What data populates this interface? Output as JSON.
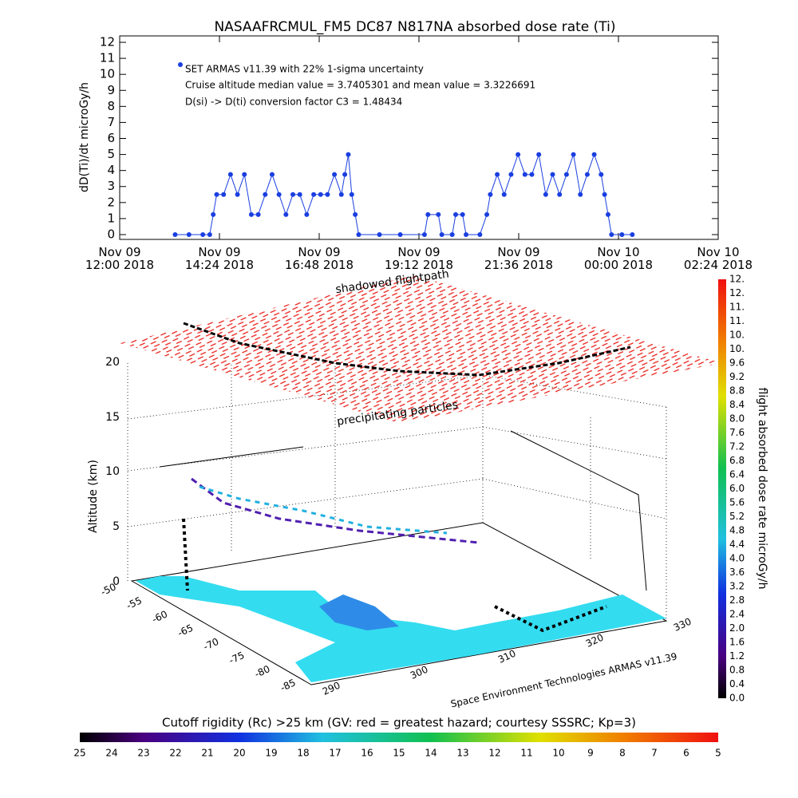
{
  "chart_data": {
    "type": "line",
    "title": "NASAAFRCMUL_FM5 DC87 N817NA absorbed dose rate (Ti)",
    "ylabel": "dD(Ti)/dt microGy/h",
    "annotations": [
      "SET ARMAS v11.39 with 22% 1-sigma uncertainty",
      "Cruise altitude median value = 3.7405301 and mean value = 3.3226691",
      "D(si) -> D(ti) conversion factor C3 = 1.48434"
    ],
    "color": "#1a3fe0",
    "xlim": [
      "2018-11-09T12:00",
      "2018-11-10T02:24"
    ],
    "xticks": [
      {
        "value": "2018-11-09T12:00",
        "label": "Nov 09 12:00 2018"
      },
      {
        "value": "2018-11-09T14:24",
        "label": "Nov 09 14:24 2018"
      },
      {
        "value": "2018-11-09T16:48",
        "label": "Nov 09 16:48 2018"
      },
      {
        "value": "2018-11-09T19:12",
        "label": "Nov 09 19:12 2018"
      },
      {
        "value": "2018-11-09T21:36",
        "label": "Nov 09 21:36 2018"
      },
      {
        "value": "2018-11-10T00:00",
        "label": "Nov 10 00:00 2018"
      },
      {
        "value": "2018-11-10T02:24",
        "label": "Nov 10 02:24 2018"
      }
    ],
    "ylim": [
      -0.3,
      12.4
    ],
    "yticks": [
      0,
      1,
      2,
      3,
      4,
      5,
      6,
      7,
      8,
      9,
      10,
      11,
      12
    ],
    "x": [
      "2018-11-09T13:20",
      "2018-11-09T13:40",
      "2018-11-09T14:00",
      "2018-11-09T14:10",
      "2018-11-09T14:15",
      "2018-11-09T14:20",
      "2018-11-09T14:30",
      "2018-11-09T14:40",
      "2018-11-09T14:50",
      "2018-11-09T15:00",
      "2018-11-09T15:10",
      "2018-11-09T15:20",
      "2018-11-09T15:30",
      "2018-11-09T15:40",
      "2018-11-09T15:50",
      "2018-11-09T16:00",
      "2018-11-09T16:10",
      "2018-11-09T16:20",
      "2018-11-09T16:30",
      "2018-11-09T16:40",
      "2018-11-09T16:50",
      "2018-11-09T17:00",
      "2018-11-09T17:10",
      "2018-11-09T17:20",
      "2018-11-09T17:25",
      "2018-11-09T17:30",
      "2018-11-09T17:35",
      "2018-11-09T17:40",
      "2018-11-09T17:45",
      "2018-11-09T18:15",
      "2018-11-09T18:45",
      "2018-11-09T19:20",
      "2018-11-09T19:25",
      "2018-11-09T19:40",
      "2018-11-09T19:45",
      "2018-11-09T20:00",
      "2018-11-09T20:05",
      "2018-11-09T20:15",
      "2018-11-09T20:20",
      "2018-11-09T20:40",
      "2018-11-09T20:50",
      "2018-11-09T20:55",
      "2018-11-09T21:05",
      "2018-11-09T21:15",
      "2018-11-09T21:25",
      "2018-11-09T21:35",
      "2018-11-09T21:45",
      "2018-11-09T21:55",
      "2018-11-09T22:05",
      "2018-11-09T22:15",
      "2018-11-09T22:25",
      "2018-11-09T22:35",
      "2018-11-09T22:45",
      "2018-11-09T22:55",
      "2018-11-09T23:05",
      "2018-11-09T23:15",
      "2018-11-09T23:25",
      "2018-11-09T23:35",
      "2018-11-09T23:40",
      "2018-11-09T23:45",
      "2018-11-09T23:50",
      "2018-11-10T00:05",
      "2018-11-10T00:20"
    ],
    "values": [
      0,
      0,
      0,
      0,
      1.25,
      2.5,
      2.5,
      3.75,
      2.5,
      3.75,
      1.25,
      1.25,
      2.5,
      3.75,
      2.5,
      1.25,
      2.5,
      2.5,
      1.25,
      2.5,
      2.5,
      2.5,
      3.75,
      2.5,
      3.75,
      5,
      2.5,
      1.25,
      0,
      0,
      0,
      0,
      1.25,
      1.25,
      0,
      0,
      1.25,
      1.25,
      0,
      0,
      1.25,
      2.5,
      3.75,
      2.5,
      3.75,
      5,
      3.75,
      3.75,
      5,
      2.5,
      3.75,
      2.5,
      3.75,
      5,
      2.5,
      3.75,
      5,
      3.75,
      2.5,
      1.25,
      0,
      0,
      0
    ]
  },
  "plot3d": {
    "labels": [
      "shadowed flightpath",
      "precipitating particles"
    ],
    "zlabel": "Altitude (km)",
    "zticks": [
      "0",
      "5",
      "10",
      "15",
      "20"
    ],
    "lat_ticks": [
      "-50",
      "-55",
      "-60",
      "-65",
      "-70",
      "-75",
      "-80",
      "-85"
    ],
    "lon_ticks": [
      "290",
      "300",
      "310",
      "320",
      "330"
    ],
    "credit": "Space Environment Technologies ARMAS v11.39"
  },
  "dose_colorbar": {
    "title": "flight absorbed dose rate microGy/h",
    "labels": [
      "0.0",
      "0.4",
      "0.8",
      "1.2",
      "1.6",
      "2.0",
      "2.4",
      "2.8",
      "3.2",
      "3.6",
      "4.0",
      "4.4",
      "4.8",
      "5.2",
      "5.6",
      "6.0",
      "6.4",
      "6.8",
      "7.2",
      "7.6",
      "8.0",
      "8.4",
      "8.8",
      "9.2",
      "9.6",
      "10.",
      "10.",
      "11.",
      "11.",
      "12.",
      "12."
    ]
  },
  "rigidity_colorbar": {
    "title": "Cutoff rigidity (Rc) >25 km (GV: red = greatest hazard; courtesy SSSRC; Kp=3)",
    "labels": [
      "25",
      "24",
      "23",
      "22",
      "21",
      "20",
      "19",
      "18",
      "17",
      "16",
      "15",
      "14",
      "13",
      "12",
      "11",
      "10",
      "9",
      "8",
      "7",
      "6",
      "5"
    ]
  }
}
